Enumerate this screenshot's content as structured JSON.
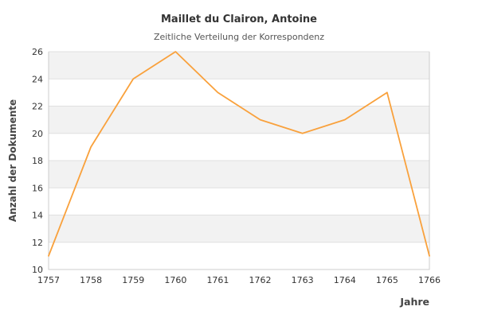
{
  "header": {
    "title": "Maillet du Clairon, Antoine",
    "subtitle": "Zeitliche Verteilung der Korrespondenz"
  },
  "chart_data": {
    "type": "line",
    "title": "Maillet du Clairon, Antoine",
    "subtitle": "Zeitliche Verteilung der Korrespondenz",
    "xlabel": "Jahre",
    "ylabel": "Anzahl der Dokumente",
    "categories": [
      "1757",
      "1758",
      "1759",
      "1760",
      "1761",
      "1762",
      "1763",
      "1764",
      "1765",
      "1766"
    ],
    "values": [
      11,
      19,
      24,
      26,
      23,
      21,
      20,
      21,
      23,
      11
    ],
    "ylim": [
      10,
      26
    ],
    "ytick_step": 2,
    "yticks": [
      10,
      12,
      14,
      16,
      18,
      20,
      22,
      24,
      26
    ],
    "grid": true,
    "banded_background": true,
    "legend": "none",
    "colors": {
      "line": "#f9a13c",
      "band": "#f2f2f2",
      "gridline": "#e0e0e0",
      "border": "#cccccc",
      "title_text": "#333333",
      "subtitle_text": "#555555",
      "tick_text": "#333333",
      "axis_label_text": "#444444",
      "background": "#ffffff"
    }
  }
}
